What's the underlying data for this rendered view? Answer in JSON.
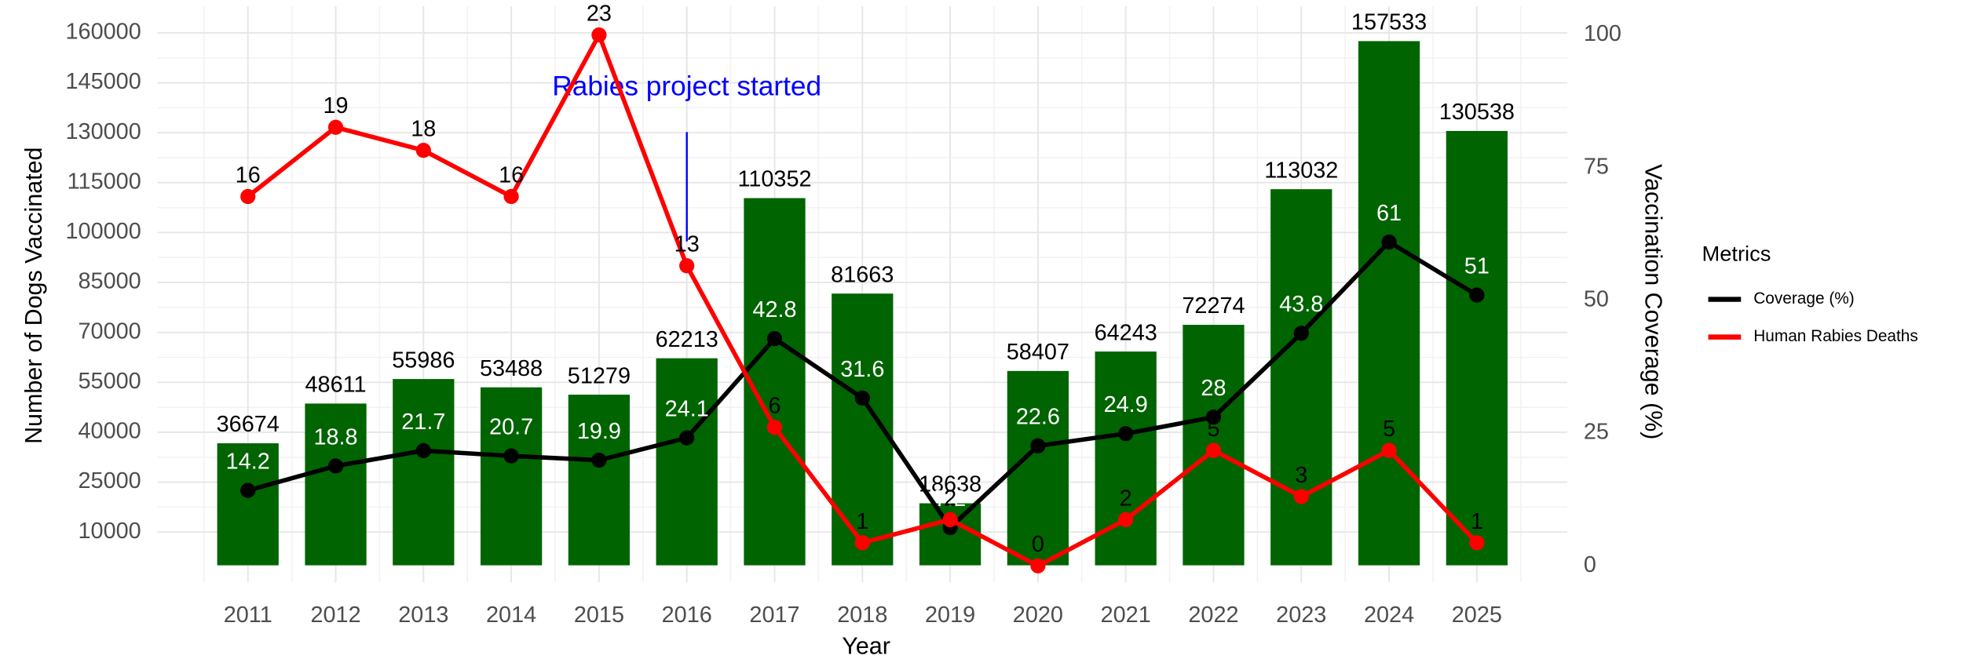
{
  "chart_data": {
    "type": "bar",
    "xlabel": "Year",
    "ylabel": "Number of Dogs Vaccinated",
    "y2label": "Vaccination Coverage (%)",
    "categories": [
      "2011",
      "2012",
      "2013",
      "2014",
      "2015",
      "2016",
      "2017",
      "2018",
      "2019",
      "2020",
      "2021",
      "2022",
      "2023",
      "2024",
      "2025"
    ],
    "values": [
      36674,
      48611,
      55986,
      53488,
      51279,
      62213,
      110352,
      81663,
      18638,
      58407,
      64243,
      72274,
      113032,
      157533,
      130538
    ],
    "color": "#006400",
    "series": [
      {
        "name": "Coverage (%)",
        "color": "#000000",
        "type": "line",
        "axis": "y2",
        "values": [
          14.2,
          18.8,
          21.7,
          20.7,
          19.9,
          24.1,
          42.8,
          31.6,
          7.2,
          22.6,
          24.9,
          28,
          43.8,
          61,
          51
        ]
      },
      {
        "name": "Human Rabies Deaths",
        "color": "#ff0000",
        "type": "line",
        "values": [
          16,
          19,
          18,
          16,
          23,
          13,
          6,
          1,
          2,
          0,
          2,
          5,
          3,
          5,
          1
        ]
      }
    ],
    "ylim": [
      -5100,
      168000
    ],
    "yticks": [
      10000,
      25000,
      40000,
      55000,
      70000,
      85000,
      100000,
      115000,
      130000,
      145000,
      160000
    ],
    "y2lim": [
      -3.1,
      105.4
    ],
    "y2ticks": [
      0,
      25,
      50,
      75,
      100
    ],
    "grid": true,
    "legend_title": "Metrics",
    "legend": "right",
    "annotation": {
      "text": "Rabies project started",
      "x": "2016",
      "color": "#0000ff"
    }
  }
}
